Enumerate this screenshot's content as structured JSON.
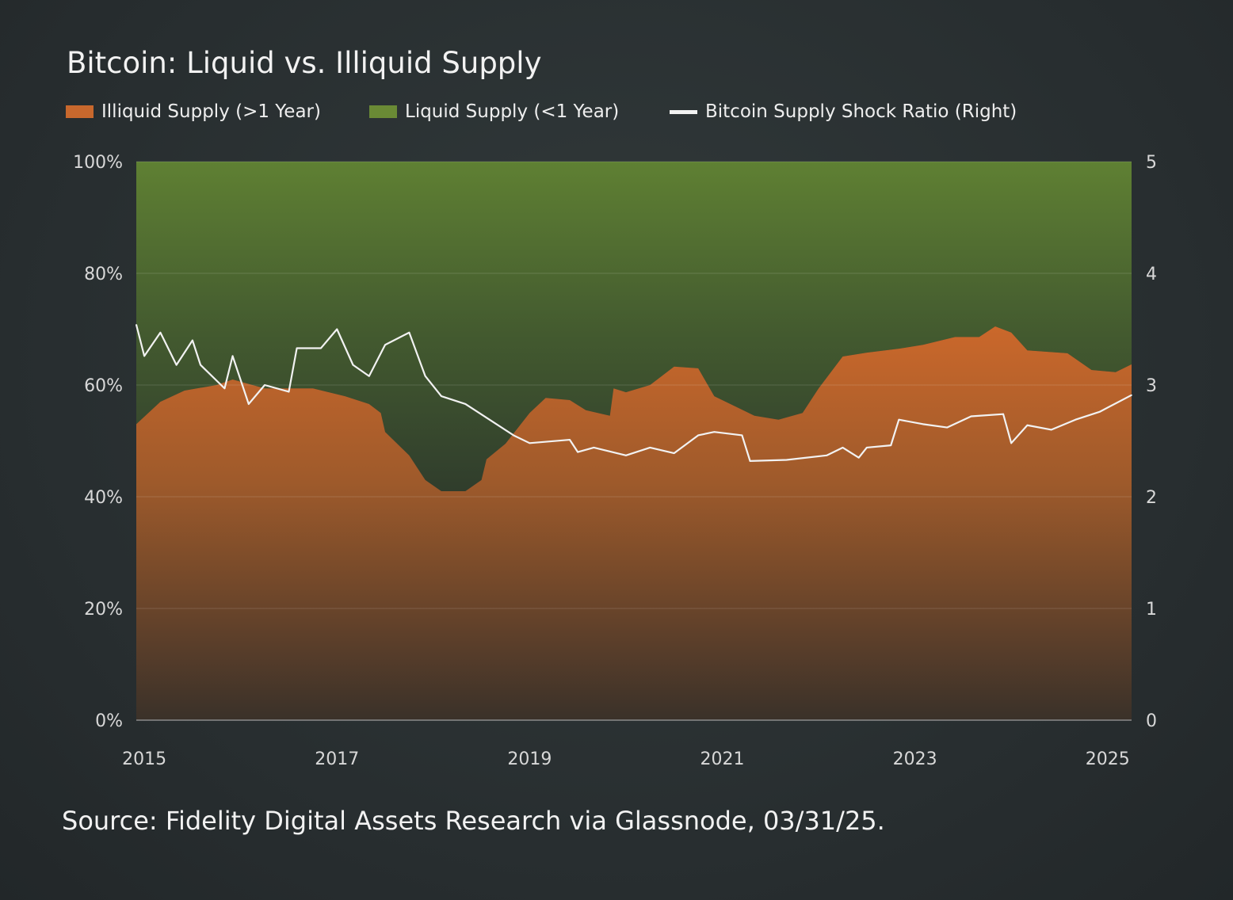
{
  "title": "Bitcoin: Liquid vs. Illiquid Supply",
  "source": "Source: Fidelity Digital Assets Research via Glassnode, 03/31/25.",
  "legend": [
    {
      "label": "Illiquid Supply (>1 Year)",
      "color": "#c8682d"
    },
    {
      "label": "Liquid Supply (<1 Year)",
      "color": "#6a8a35"
    },
    {
      "label": "Bitcoin Supply Shock Ratio (Right)",
      "color": "#f2f2f2"
    }
  ],
  "chart_data": {
    "type": "area",
    "stacked": true,
    "title": "Bitcoin: Liquid vs. Illiquid Supply",
    "x_ticks": [
      "2015",
      "2017",
      "2019",
      "2021",
      "2023",
      "2025"
    ],
    "y_left_ticks": [
      "0%",
      "20%",
      "40%",
      "60%",
      "80%",
      "100%"
    ],
    "y_right_ticks": [
      "0",
      "1",
      "2",
      "3",
      "4",
      "5"
    ],
    "y_left_range": [
      0,
      100
    ],
    "y_right_range": [
      0,
      5
    ],
    "x_range": [
      "2014-12-01",
      "2025-03-31"
    ],
    "grid": true,
    "legend_position": "top",
    "stack_dates": [
      "2014-12-01",
      "2015-03-01",
      "2015-06-01",
      "2015-10-01",
      "2015-12-01",
      "2016-04-01",
      "2016-10-01",
      "2017-02-01",
      "2017-05-01",
      "2017-06-15",
      "2017-07-01",
      "2017-10-01",
      "2017-12-01",
      "2018-02-01",
      "2018-05-01",
      "2018-07-01",
      "2018-07-20",
      "2018-10-01",
      "2019-01-01",
      "2019-03-01",
      "2019-06-01",
      "2019-08-01",
      "2019-11-01",
      "2019-11-15",
      "2020-01-01",
      "2020-04-01",
      "2020-07-01",
      "2020-10-01",
      "2020-12-01",
      "2021-03-01",
      "2021-05-01",
      "2021-08-01",
      "2021-11-01",
      "2022-01-01",
      "2022-04-01",
      "2022-07-01",
      "2022-11-01",
      "2023-02-01",
      "2023-06-01",
      "2023-09-01",
      "2023-11-01",
      "2024-01-01",
      "2024-03-01",
      "2024-08-01",
      "2024-11-01",
      "2025-02-01",
      "2025-03-31"
    ],
    "series": [
      {
        "name": "Illiquid Supply (>1 Year)",
        "axis": "left",
        "color": "#c8682d",
        "values": [
          53,
          57,
          59,
          60,
          61,
          59.4,
          59.4,
          58,
          56.6,
          55,
          51.6,
          47.4,
          43,
          41,
          41,
          43,
          46.7,
          49.5,
          55,
          57.7,
          57.3,
          55.5,
          54.5,
          59.4,
          58.7,
          60,
          63.3,
          63,
          58,
          55.9,
          54.5,
          53.8,
          55,
          59.4,
          65.1,
          65.8,
          66.5,
          67.2,
          68.6,
          68.6,
          70.5,
          69.4,
          66.2,
          65.7,
          62.7,
          62.3,
          63.7
        ]
      },
      {
        "name": "Liquid Supply (<1 Year)",
        "axis": "left",
        "color": "#6a8a35",
        "values": [
          47,
          43,
          41,
          40,
          39,
          40.6,
          40.6,
          42,
          43.4,
          45,
          48.4,
          52.6,
          57,
          59,
          59,
          57,
          53.3,
          50.5,
          45,
          42.3,
          42.7,
          44.5,
          45.5,
          40.6,
          41.3,
          40,
          36.7,
          37,
          42,
          44.1,
          45.5,
          46.2,
          45,
          40.6,
          34.9,
          34.2,
          33.5,
          32.8,
          31.4,
          31.4,
          29.5,
          30.6,
          33.8,
          34.3,
          37.3,
          37.7,
          36.3
        ]
      },
      {
        "name": "Bitcoin Supply Shock Ratio (Right)",
        "axis": "right",
        "type": "line",
        "color": "#f2f2f2",
        "dates": [
          "2014-12-01",
          "2015-01-01",
          "2015-03-01",
          "2015-05-01",
          "2015-07-01",
          "2015-08-01",
          "2015-11-01",
          "2015-12-01",
          "2016-02-01",
          "2016-04-01",
          "2016-07-01",
          "2016-08-01",
          "2016-11-01",
          "2017-01-01",
          "2017-03-01",
          "2017-05-01",
          "2017-07-01",
          "2017-10-01",
          "2017-12-01",
          "2018-02-01",
          "2018-05-01",
          "2018-08-01",
          "2018-11-01",
          "2019-01-01",
          "2019-06-01",
          "2019-07-01",
          "2019-09-01",
          "2020-01-01",
          "2020-04-01",
          "2020-07-01",
          "2020-10-01",
          "2020-12-01",
          "2021-03-15",
          "2021-04-15",
          "2021-09-01",
          "2022-02-01",
          "2022-04-01",
          "2022-06-01",
          "2022-07-01",
          "2022-10-01",
          "2022-11-01",
          "2023-02-01",
          "2023-05-01",
          "2023-08-01",
          "2023-12-01",
          "2024-01-01",
          "2024-03-01",
          "2024-06-01",
          "2024-09-01",
          "2024-12-01",
          "2025-03-31"
        ],
        "values": [
          3.54,
          3.26,
          3.47,
          3.18,
          3.4,
          3.18,
          2.97,
          3.26,
          2.83,
          3.0,
          2.94,
          3.33,
          3.33,
          3.5,
          3.18,
          3.08,
          3.36,
          3.47,
          3.08,
          2.9,
          2.83,
          2.69,
          2.55,
          2.48,
          2.51,
          2.4,
          2.44,
          2.37,
          2.44,
          2.39,
          2.55,
          2.58,
          2.55,
          2.32,
          2.33,
          2.37,
          2.44,
          2.35,
          2.44,
          2.46,
          2.69,
          2.65,
          2.62,
          2.72,
          2.74,
          2.48,
          2.64,
          2.6,
          2.69,
          2.76,
          2.91
        ]
      }
    ]
  }
}
